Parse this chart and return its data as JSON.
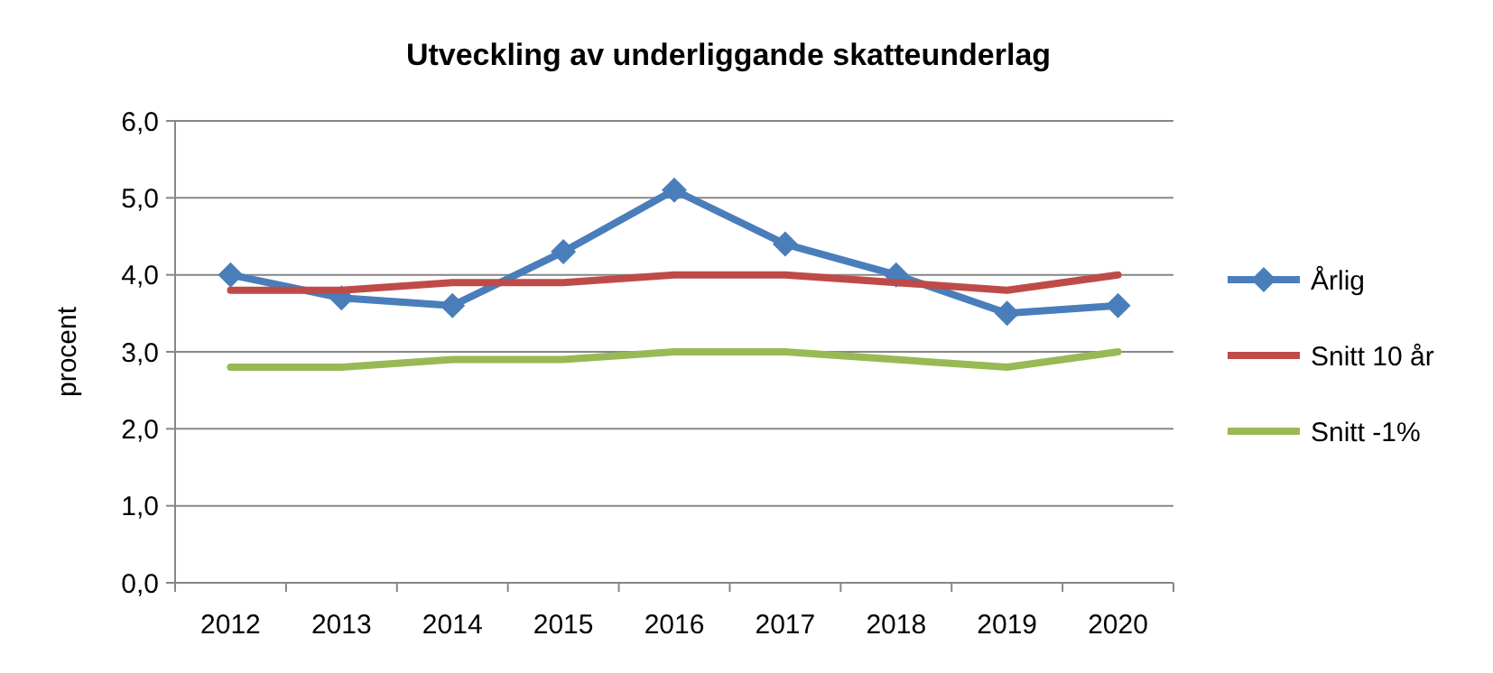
{
  "chart_data": {
    "type": "line",
    "title": "Utveckling av underliggande skatteunderlag",
    "ylabel": "procent",
    "categories": [
      "2012",
      "2013",
      "2014",
      "2015",
      "2016",
      "2017",
      "2018",
      "2019",
      "2020"
    ],
    "series": [
      {
        "name": "Årlig",
        "color": "#4a7ebb",
        "marker": "diamond",
        "values": [
          4.0,
          3.7,
          3.6,
          4.3,
          5.1,
          4.4,
          4.0,
          3.5,
          3.6
        ]
      },
      {
        "name": "Snitt 10 år",
        "color": "#be4b48",
        "values": [
          3.8,
          3.8,
          3.9,
          3.9,
          4.0,
          4.0,
          3.9,
          3.8,
          4.0
        ]
      },
      {
        "name": "Snitt -1%",
        "color": "#98b954",
        "values": [
          2.8,
          2.8,
          2.9,
          2.9,
          3.0,
          3.0,
          2.9,
          2.8,
          3.0
        ]
      }
    ],
    "ylim": [
      0,
      6
    ],
    "yticks": [
      {
        "value": 0,
        "label": "0,0"
      },
      {
        "value": 1,
        "label": "1,0"
      },
      {
        "value": 2,
        "label": "2,0"
      },
      {
        "value": 3,
        "label": "3,0"
      },
      {
        "value": 4,
        "label": "4,0"
      },
      {
        "value": 5,
        "label": "5,0"
      },
      {
        "value": 6,
        "label": "6,0"
      }
    ],
    "grid": "y",
    "legend": "right"
  }
}
